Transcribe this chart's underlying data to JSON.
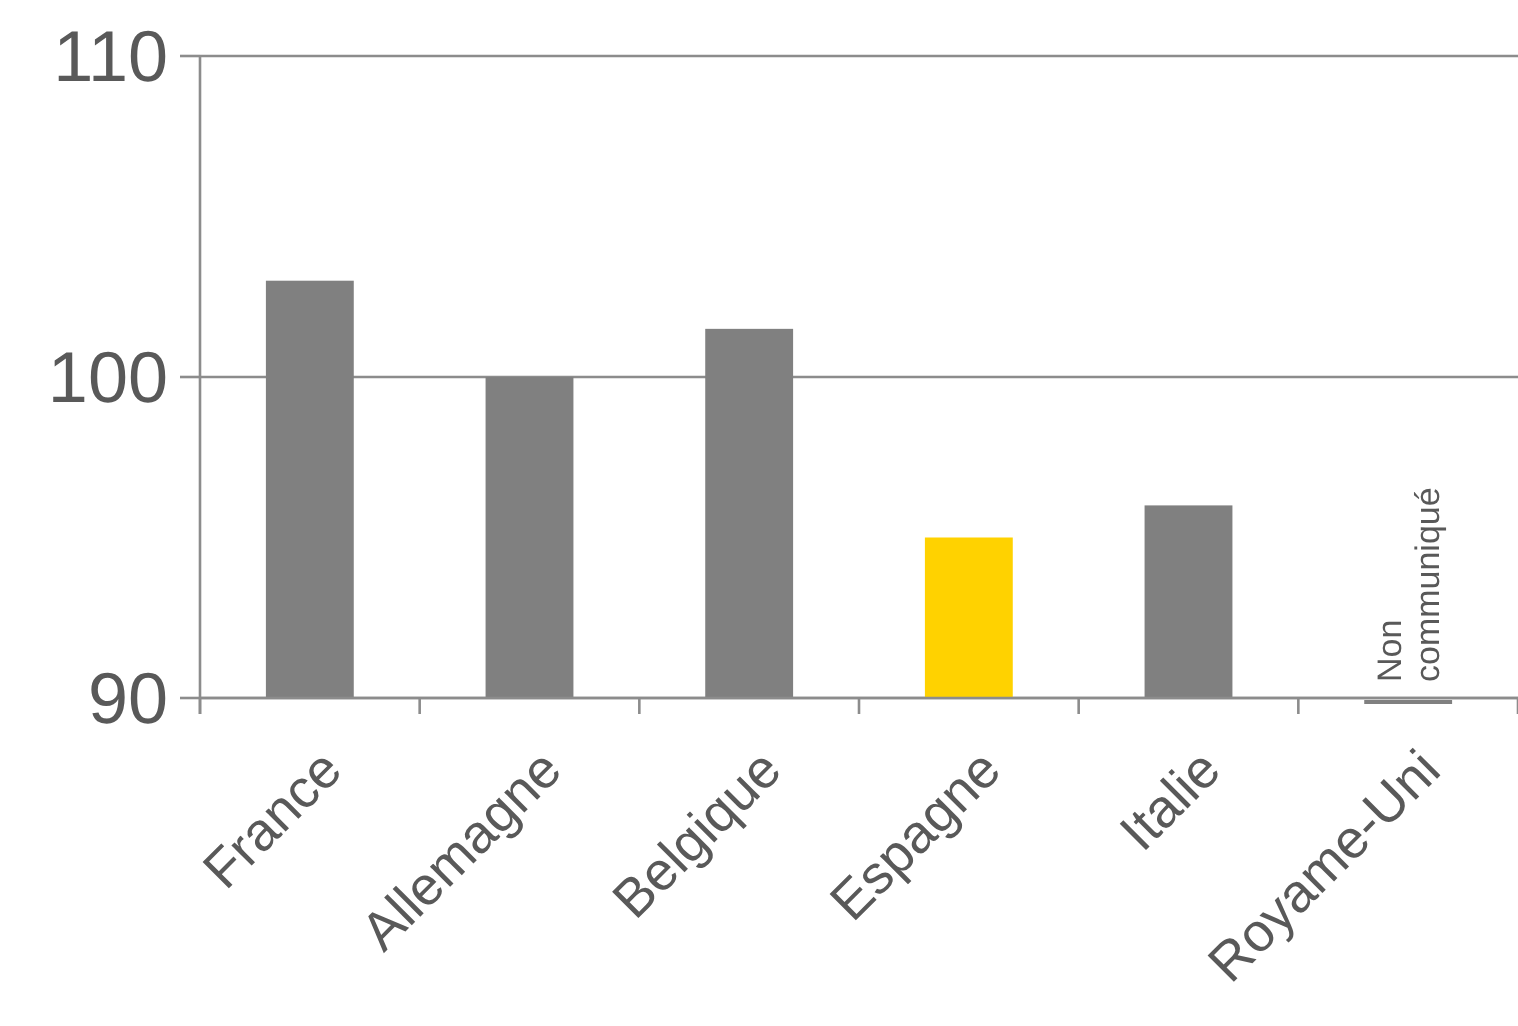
{
  "chart_data": {
    "type": "bar",
    "categories": [
      "France",
      "Allemagne",
      "Belgique",
      "Espagne",
      "Italie",
      "Royame-Uni"
    ],
    "values": [
      103,
      100,
      101.5,
      95,
      96,
      null
    ],
    "colors": [
      "#808080",
      "#808080",
      "#808080",
      "#ffd200",
      "#808080",
      "#808080"
    ],
    "ylim": [
      90,
      110
    ],
    "yticks": [
      90,
      100,
      110
    ],
    "grid": "y",
    "annotations": [
      "Non communiqué"
    ]
  }
}
